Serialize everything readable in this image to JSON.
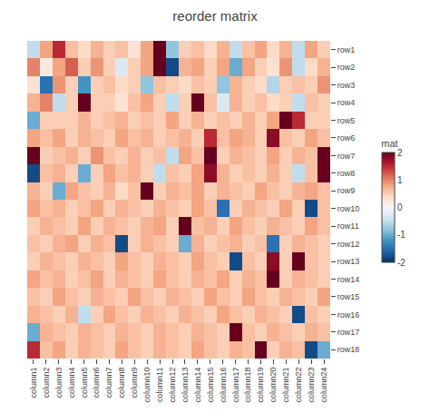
{
  "chart_data": {
    "type": "heatmap",
    "title": "reorder matrix",
    "colorbar_title": "mat",
    "color_range": [
      -2,
      2
    ],
    "colorbar_ticks": [
      2,
      1,
      0,
      -1,
      -2
    ],
    "rows": [
      "row1",
      "row2",
      "row3",
      "row4",
      "row5",
      "row6",
      "row7",
      "row8",
      "row9",
      "row10",
      "row11",
      "row12",
      "row13",
      "row14",
      "row15",
      "row16",
      "row17",
      "row18"
    ],
    "columns": [
      "column1",
      "column2",
      "column3",
      "column4",
      "column5",
      "column6",
      "column7",
      "column8",
      "column9",
      "column10",
      "column11",
      "column12",
      "column13",
      "column14",
      "column15",
      "column16",
      "column17",
      "column18",
      "column19",
      "column20",
      "column21",
      "column22",
      "column23",
      "column24"
    ],
    "cells": [
      [
        -0.5,
        0.8,
        1.5,
        0.6,
        0.4,
        0.7,
        0.5,
        0.6,
        0.3,
        0.8,
        2.0,
        -0.8,
        0.5,
        0.6,
        0.4,
        0.7,
        -0.5,
        0.6,
        0.8,
        0.4,
        0.7,
        -0.5,
        0.8,
        0.5
      ],
      [
        1.0,
        0.2,
        0.8,
        1.2,
        0.5,
        0.9,
        0.5,
        -0.3,
        0.5,
        0.8,
        2.0,
        -1.8,
        0.7,
        0.8,
        0.5,
        0.8,
        -1.0,
        0.8,
        0.5,
        0.3,
        0.9,
        -0.5,
        0.4,
        0.7
      ],
      [
        0.3,
        -1.5,
        0.9,
        0.5,
        -1.2,
        0.5,
        0.6,
        0.4,
        0.5,
        -0.8,
        0.6,
        0.5,
        0.4,
        0.6,
        0.5,
        -0.8,
        0.7,
        0.5,
        0.4,
        -0.6,
        0.5,
        0.6,
        0.5,
        0.9
      ],
      [
        0.7,
        1.0,
        -0.5,
        0.5,
        2.0,
        0.5,
        0.5,
        0.3,
        0.6,
        0.8,
        0.5,
        -0.5,
        0.5,
        2.0,
        0.6,
        -0.3,
        0.7,
        0.5,
        0.6,
        0.4,
        0.5,
        -0.5,
        0.6,
        0.5
      ],
      [
        -1.0,
        0.5,
        0.5,
        0.5,
        0.7,
        0.5,
        0.6,
        0.7,
        0.5,
        0.6,
        0.5,
        0.8,
        0.5,
        0.7,
        0.5,
        0.6,
        0.5,
        0.7,
        0.5,
        0.8,
        2.0,
        1.5,
        0.5,
        0.5
      ],
      [
        0.8,
        0.6,
        0.8,
        0.5,
        0.7,
        0.6,
        0.5,
        0.8,
        0.6,
        0.7,
        0.5,
        0.6,
        0.7,
        0.5,
        1.5,
        0.6,
        0.8,
        0.7,
        0.5,
        1.8,
        0.6,
        0.5,
        0.8,
        0.6
      ],
      [
        2.0,
        0.5,
        0.6,
        0.7,
        0.5,
        0.9,
        0.6,
        0.5,
        0.7,
        0.5,
        0.6,
        -0.5,
        0.8,
        0.6,
        2.0,
        0.5,
        0.7,
        0.6,
        0.5,
        0.8,
        0.5,
        0.7,
        0.6,
        2.0
      ],
      [
        -1.8,
        0.6,
        0.7,
        0.5,
        -1.0,
        0.5,
        0.8,
        0.6,
        0.7,
        0.5,
        -0.5,
        0.6,
        0.5,
        0.8,
        1.8,
        0.7,
        0.5,
        0.6,
        0.5,
        0.7,
        0.5,
        -0.5,
        0.6,
        2.0
      ],
      [
        0.7,
        0.5,
        -1.0,
        0.8,
        0.6,
        0.5,
        0.7,
        0.4,
        0.6,
        2.0,
        0.5,
        0.7,
        0.6,
        0.8,
        0.5,
        0.7,
        0.6,
        0.5,
        0.8,
        0.6,
        0.5,
        0.7,
        0.8,
        0.6
      ],
      [
        0.8,
        0.6,
        0.7,
        0.5,
        0.6,
        0.8,
        0.5,
        0.7,
        0.6,
        0.5,
        0.7,
        0.6,
        0.5,
        0.8,
        0.6,
        -1.5,
        0.5,
        0.7,
        0.6,
        0.5,
        0.8,
        0.5,
        -1.8,
        0.6
      ],
      [
        0.5,
        0.7,
        0.6,
        0.5,
        0.8,
        0.5,
        0.7,
        0.6,
        0.5,
        0.7,
        0.8,
        0.5,
        2.0,
        0.6,
        0.7,
        0.5,
        0.8,
        0.6,
        0.5,
        0.7,
        0.6,
        0.5,
        0.8,
        0.6
      ],
      [
        0.6,
        0.5,
        0.7,
        0.8,
        0.5,
        0.7,
        0.6,
        -1.8,
        0.5,
        0.7,
        0.6,
        0.5,
        -1.0,
        0.7,
        0.5,
        0.6,
        0.7,
        0.5,
        0.6,
        -1.5,
        0.5,
        0.7,
        0.6,
        0.5
      ],
      [
        0.5,
        0.7,
        0.6,
        0.5,
        0.7,
        0.6,
        0.5,
        0.8,
        0.6,
        0.5,
        0.7,
        0.6,
        0.5,
        0.8,
        0.6,
        0.5,
        -1.8,
        0.6,
        0.5,
        1.8,
        0.5,
        2.0,
        0.6,
        0.5
      ],
      [
        0.8,
        0.6,
        0.7,
        0.5,
        0.6,
        0.8,
        0.5,
        0.7,
        0.6,
        0.5,
        0.8,
        0.6,
        0.5,
        0.7,
        0.6,
        0.8,
        0.5,
        0.7,
        0.6,
        2.0,
        0.5,
        0.7,
        0.6,
        0.5
      ],
      [
        0.6,
        0.5,
        0.8,
        0.6,
        0.5,
        0.7,
        0.6,
        0.5,
        0.8,
        0.6,
        0.5,
        0.7,
        0.6,
        0.5,
        0.8,
        0.6,
        0.5,
        0.8,
        0.6,
        0.5,
        0.7,
        0.6,
        0.5,
        0.8
      ],
      [
        0.7,
        0.6,
        0.5,
        0.7,
        -0.5,
        0.5,
        0.8,
        0.6,
        0.5,
        0.7,
        0.6,
        0.5,
        0.7,
        0.6,
        0.5,
        0.8,
        0.6,
        0.5,
        0.7,
        0.6,
        0.5,
        -1.8,
        0.6,
        0.5
      ],
      [
        -1.0,
        0.7,
        0.6,
        0.5,
        0.7,
        0.6,
        0.5,
        0.7,
        0.6,
        0.5,
        0.7,
        0.6,
        0.5,
        0.7,
        0.6,
        0.5,
        2.0,
        0.6,
        0.5,
        0.7,
        0.6,
        0.5,
        0.7,
        0.6
      ],
      [
        1.5,
        0.6,
        0.8,
        0.5,
        0.7,
        0.6,
        0.5,
        0.8,
        0.6,
        0.5,
        0.7,
        0.6,
        0.5,
        0.8,
        0.6,
        0.5,
        0.7,
        0.6,
        2.0,
        0.5,
        0.7,
        0.6,
        -1.8,
        -1.0
      ]
    ]
  }
}
